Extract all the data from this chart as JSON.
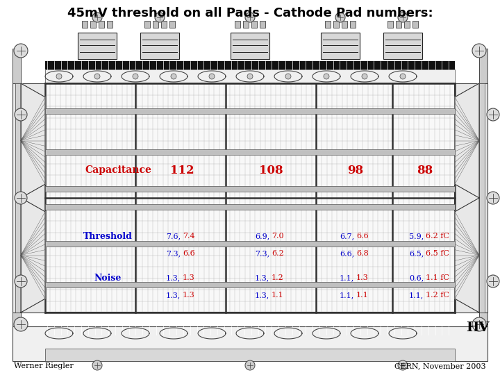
{
  "title": "45mV threshold on all Pads - Cathode Pad numbers:",
  "title_fontsize": 13,
  "title_color": "black",
  "background_color": "white",
  "hv_label": "HV",
  "footer_left": "Werner Riegler",
  "footer_right": "CERN, November 2003",
  "capacitance_label": "Capacitance",
  "capacitance_values": [
    "112",
    "108",
    "98",
    "88"
  ],
  "threshold_label": "Threshold",
  "threshold_row1_blue": [
    "7.6,",
    "6.9,",
    "6.7,",
    "5.9,"
  ],
  "threshold_row1_red": [
    "7.4",
    "7.0",
    "6.6",
    "6.2 fC"
  ],
  "threshold_row2_blue": [
    "7.3,",
    "7.3,",
    "6.6,",
    "6.5,"
  ],
  "threshold_row2_red": [
    "6.6",
    "6.2",
    "6.8",
    "6.5 fC"
  ],
  "noise_label": "Noise",
  "noise_row1_blue": [
    "1.3,",
    "1.3,",
    "1.1,",
    "0.6,"
  ],
  "noise_row1_red": [
    "1.3",
    "1.2",
    "1.3",
    "1.1 fC"
  ],
  "noise_row2_blue": [
    "1.3,",
    "1.3,",
    "1.1,",
    "1.1,"
  ],
  "noise_row2_red": [
    "1.3",
    "1.1",
    "1.1",
    "1.2 fC"
  ],
  "red_color": "#cc0000",
  "blue_color": "#0000cc",
  "line_color": "#444444",
  "dark_line": "#222222",
  "grid_color": "#777777",
  "fill_gray": "#e0e0e0",
  "fill_dark": "#111111",
  "fill_mid": "#999999",
  "fill_light": "#cccccc"
}
